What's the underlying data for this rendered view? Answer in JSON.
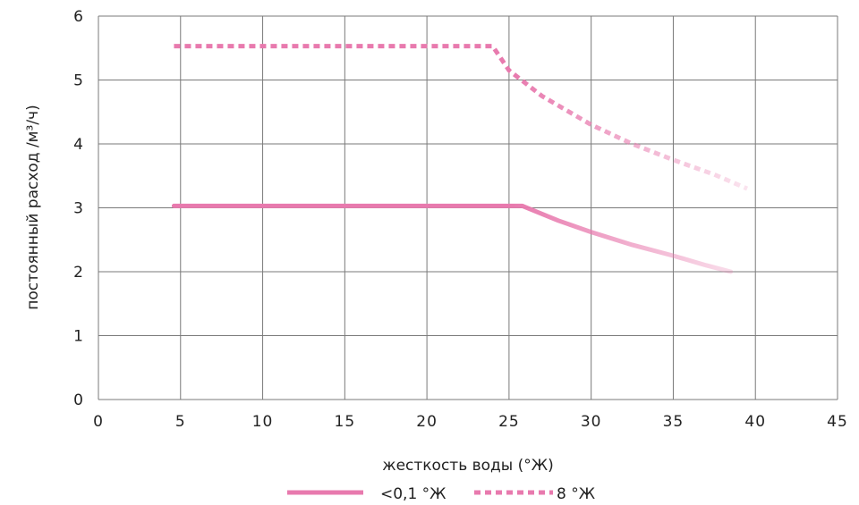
{
  "chart_data": {
    "type": "line",
    "xlabel": "жесткость воды (°Ж)",
    "ylabel": "постоянный расход /м³/ч)",
    "xlim": [
      0,
      45
    ],
    "ylim": [
      0,
      6
    ],
    "xticks": [
      0,
      5,
      10,
      15,
      20,
      25,
      30,
      35,
      40,
      45
    ],
    "yticks": [
      0,
      1,
      2,
      3,
      4,
      5,
      6
    ],
    "grid": true,
    "legend_position": "bottom",
    "series": [
      {
        "name": "<0,1 °Ж",
        "style": "solid",
        "color": "#e87aae",
        "x": [
          4.6,
          10,
          15,
          20,
          25,
          25.8,
          28,
          30,
          32.5,
          35,
          37,
          38.5
        ],
        "y": [
          3.03,
          3.03,
          3.03,
          3.03,
          3.03,
          3.03,
          2.8,
          2.62,
          2.42,
          2.25,
          2.1,
          2.0
        ]
      },
      {
        "name": "8 °Ж",
        "style": "dotted",
        "color": "#e87aae",
        "x": [
          4.6,
          10,
          15,
          20,
          24,
          25,
          27,
          30,
          32.5,
          35,
          37.5,
          39.5
        ],
        "y": [
          5.53,
          5.53,
          5.53,
          5.53,
          5.53,
          5.15,
          4.75,
          4.3,
          4.0,
          3.75,
          3.52,
          3.3
        ]
      }
    ]
  }
}
